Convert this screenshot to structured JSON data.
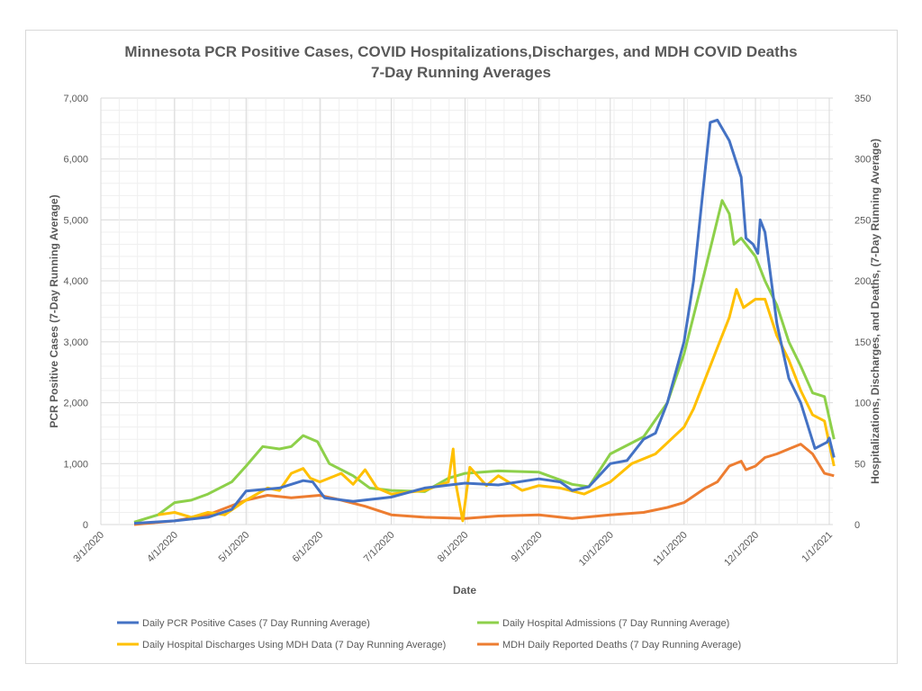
{
  "chart_data": {
    "type": "line",
    "title": "Minnesota PCR Positive Cases, COVID Hospitalizations,Discharges, and MDH COVID Deaths",
    "subtitle": "7-Day Running Averages",
    "xlabel": "Date",
    "ylabel": "PCR Positive Cases (7-Day Running Average)",
    "y2label": "Hospitalizations, Discharges, and Deaths, (7-Day Running Average)",
    "xlim": [
      "3/1/2020",
      "1/3/2021"
    ],
    "ylim": [
      0,
      7000
    ],
    "y2lim": [
      0,
      350
    ],
    "x_ticks": [
      "3/1/2020",
      "4/1/2020",
      "5/1/2020",
      "6/1/2020",
      "7/1/2020",
      "8/1/2020",
      "9/1/2020",
      "10/1/2020",
      "11/1/2020",
      "12/1/2020",
      "1/1/2021"
    ],
    "y_ticks": [
      "0",
      "1,000",
      "2,000",
      "3,000",
      "4,000",
      "5,000",
      "6,000",
      "7,000"
    ],
    "y2_ticks": [
      "0",
      "50",
      "100",
      "150",
      "200",
      "250",
      "300",
      "350"
    ],
    "grid": true,
    "legend_placement": "bottom",
    "series": [
      {
        "name": "Daily PCR Positive Cases (7 Day Running Average)",
        "axis": "left",
        "color": "#4472c4",
        "points": [
          [
            "3/15/2020",
            20
          ],
          [
            "4/1/2020",
            60
          ],
          [
            "4/15/2020",
            120
          ],
          [
            "4/25/2020",
            250
          ],
          [
            "5/1/2020",
            550
          ],
          [
            "5/15/2020",
            600
          ],
          [
            "5/25/2020",
            720
          ],
          [
            "5/29/2020",
            700
          ],
          [
            "6/3/2020",
            440
          ],
          [
            "6/15/2020",
            380
          ],
          [
            "7/1/2020",
            450
          ],
          [
            "7/15/2020",
            600
          ],
          [
            "8/1/2020",
            680
          ],
          [
            "8/15/2020",
            650
          ],
          [
            "9/1/2020",
            750
          ],
          [
            "9/10/2020",
            700
          ],
          [
            "9/15/2020",
            560
          ],
          [
            "9/22/2020",
            620
          ],
          [
            "10/1/2020",
            1000
          ],
          [
            "10/8/2020",
            1050
          ],
          [
            "10/15/2020",
            1400
          ],
          [
            "10/20/2020",
            1500
          ],
          [
            "10/25/2020",
            2000
          ],
          [
            "11/1/2020",
            3000
          ],
          [
            "11/5/2020",
            4000
          ],
          [
            "11/9/2020",
            5500
          ],
          [
            "11/12/2020",
            6600
          ],
          [
            "11/15/2020",
            6640
          ],
          [
            "11/20/2020",
            6300
          ],
          [
            "11/25/2020",
            5700
          ],
          [
            "11/27/2020",
            4700
          ],
          [
            "11/30/2020",
            4600
          ],
          [
            "12/2/2020",
            4450
          ],
          [
            "12/3/2020",
            5000
          ],
          [
            "12/5/2020",
            4800
          ],
          [
            "12/10/2020",
            3300
          ],
          [
            "12/15/2020",
            2400
          ],
          [
            "12/20/2020",
            2000
          ],
          [
            "12/26/2020",
            1250
          ],
          [
            "12/31/2020",
            1350
          ],
          [
            "1/1/2021",
            1420
          ],
          [
            "1/3/2021",
            1100
          ]
        ]
      },
      {
        "name": "Daily Hospital Admissions (7 Day Running Average)",
        "axis": "right",
        "color": "#8dd04a",
        "points": [
          [
            "3/15/2020",
            2
          ],
          [
            "3/25/2020",
            8
          ],
          [
            "4/1/2020",
            18
          ],
          [
            "4/8/2020",
            20
          ],
          [
            "4/15/2020",
            25
          ],
          [
            "4/25/2020",
            35
          ],
          [
            "5/1/2020",
            48
          ],
          [
            "5/8/2020",
            64
          ],
          [
            "5/15/2020",
            62
          ],
          [
            "5/20/2020",
            64
          ],
          [
            "5/25/2020",
            73
          ],
          [
            "5/31/2020",
            68
          ],
          [
            "6/5/2020",
            50
          ],
          [
            "6/15/2020",
            40
          ],
          [
            "6/22/2020",
            30
          ],
          [
            "7/1/2020",
            28
          ],
          [
            "7/15/2020",
            27
          ],
          [
            "7/25/2020",
            38
          ],
          [
            "8/1/2020",
            42
          ],
          [
            "8/15/2020",
            44
          ],
          [
            "9/1/2020",
            43
          ],
          [
            "9/15/2020",
            33
          ],
          [
            "9/22/2020",
            31
          ],
          [
            "10/1/2020",
            58
          ],
          [
            "10/15/2020",
            72
          ],
          [
            "10/25/2020",
            100
          ],
          [
            "11/1/2020",
            140
          ],
          [
            "11/10/2020",
            210
          ],
          [
            "11/17/2020",
            266
          ],
          [
            "11/20/2020",
            255
          ],
          [
            "11/22/2020",
            230
          ],
          [
            "11/25/2020",
            235
          ],
          [
            "12/1/2020",
            220
          ],
          [
            "12/5/2020",
            200
          ],
          [
            "12/10/2020",
            180
          ],
          [
            "12/15/2020",
            150
          ],
          [
            "12/20/2020",
            130
          ],
          [
            "12/25/2020",
            108
          ],
          [
            "12/30/2020",
            105
          ],
          [
            "1/3/2021",
            70
          ]
        ]
      },
      {
        "name": "Daily Hospital Discharges Using MDH Data (7 Day Running Average)",
        "axis": "right",
        "color": "#ffc000",
        "points": [
          [
            "3/25/2020",
            8
          ],
          [
            "4/1/2020",
            10
          ],
          [
            "4/8/2020",
            6
          ],
          [
            "4/15/2020",
            10
          ],
          [
            "4/22/2020",
            8
          ],
          [
            "5/1/2020",
            20
          ],
          [
            "5/10/2020",
            30
          ],
          [
            "5/15/2020",
            28
          ],
          [
            "5/20/2020",
            42
          ],
          [
            "5/25/2020",
            46
          ],
          [
            "5/28/2020",
            38
          ],
          [
            "6/1/2020",
            35
          ],
          [
            "6/10/2020",
            42
          ],
          [
            "6/15/2020",
            33
          ],
          [
            "6/20/2020",
            45
          ],
          [
            "6/25/2020",
            30
          ],
          [
            "7/1/2020",
            25
          ],
          [
            "7/15/2020",
            28
          ],
          [
            "7/25/2020",
            35
          ],
          [
            "7/27/2020",
            62
          ],
          [
            "7/28/2020",
            35
          ],
          [
            "7/31/2020",
            3
          ],
          [
            "8/3/2020",
            47
          ],
          [
            "8/10/2020",
            32
          ],
          [
            "8/15/2020",
            40
          ],
          [
            "8/25/2020",
            28
          ],
          [
            "9/1/2020",
            32
          ],
          [
            "9/10/2020",
            30
          ],
          [
            "9/20/2020",
            25
          ],
          [
            "10/1/2020",
            35
          ],
          [
            "10/10/2020",
            50
          ],
          [
            "10/20/2020",
            58
          ],
          [
            "11/1/2020",
            80
          ],
          [
            "11/5/2020",
            95
          ],
          [
            "11/15/2020",
            145
          ],
          [
            "11/20/2020",
            170
          ],
          [
            "11/23/2020",
            193
          ],
          [
            "11/26/2020",
            178
          ],
          [
            "12/1/2020",
            185
          ],
          [
            "12/5/2020",
            185
          ],
          [
            "12/10/2020",
            155
          ],
          [
            "12/15/2020",
            135
          ],
          [
            "12/20/2020",
            110
          ],
          [
            "12/25/2020",
            90
          ],
          [
            "12/30/2020",
            85
          ],
          [
            "1/3/2021",
            48
          ]
        ]
      },
      {
        "name": "MDH Daily Reported Deaths (7 Day Running Average)",
        "axis": "right",
        "color": "#ed7d31",
        "points": [
          [
            "3/15/2020",
            0
          ],
          [
            "4/1/2020",
            3
          ],
          [
            "4/15/2020",
            8
          ],
          [
            "5/1/2020",
            20
          ],
          [
            "5/10/2020",
            24
          ],
          [
            "5/20/2020",
            22
          ],
          [
            "6/1/2020",
            24
          ],
          [
            "6/10/2020",
            20
          ],
          [
            "6/20/2020",
            15
          ],
          [
            "7/1/2020",
            8
          ],
          [
            "7/15/2020",
            6
          ],
          [
            "8/1/2020",
            5
          ],
          [
            "8/15/2020",
            7
          ],
          [
            "9/1/2020",
            8
          ],
          [
            "9/15/2020",
            5
          ],
          [
            "10/1/2020",
            8
          ],
          [
            "10/15/2020",
            10
          ],
          [
            "10/25/2020",
            14
          ],
          [
            "11/1/2020",
            18
          ],
          [
            "11/10/2020",
            30
          ],
          [
            "11/15/2020",
            35
          ],
          [
            "11/20/2020",
            48
          ],
          [
            "11/25/2020",
            52
          ],
          [
            "11/27/2020",
            45
          ],
          [
            "12/1/2020",
            48
          ],
          [
            "12/5/2020",
            55
          ],
          [
            "12/10/2020",
            58
          ],
          [
            "12/15/2020",
            62
          ],
          [
            "12/20/2020",
            66
          ],
          [
            "12/25/2020",
            58
          ],
          [
            "12/30/2020",
            42
          ],
          [
            "1/3/2021",
            40
          ]
        ]
      }
    ]
  }
}
